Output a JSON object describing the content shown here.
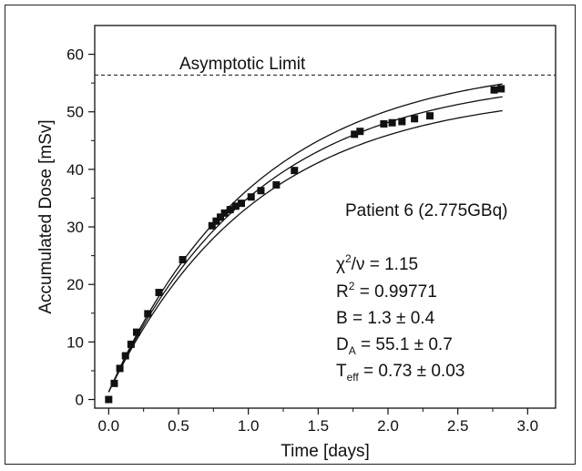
{
  "chart_data": {
    "type": "scatter",
    "title": "",
    "xlabel": "Time [days]",
    "ylabel": "Accumulated Dose [mSv]",
    "xlim": [
      -0.1,
      3.2
    ],
    "ylim": [
      -1.5,
      65
    ],
    "x_ticks": [
      0.0,
      0.5,
      1.0,
      1.5,
      2.0,
      2.5,
      3.0
    ],
    "x_tick_labels": [
      "0.0",
      "0.5",
      "1.0",
      "1.5",
      "2.0",
      "2.5",
      "3.0"
    ],
    "y_ticks": [
      0,
      10,
      20,
      30,
      40,
      50,
      60
    ],
    "y_tick_labels": [
      "0",
      "10",
      "20",
      "30",
      "40",
      "50",
      "60"
    ],
    "grid": false,
    "asymptote": {
      "label": "Asymptotic Limit",
      "value": 56.4
    },
    "fit": {
      "D_A": 55.1,
      "T_eff": 0.73,
      "B": 1.3,
      "band_upper_D_A": 57.5,
      "band_lower_D_A": 52.5
    },
    "series": [
      {
        "x": [
          0.0,
          0.04,
          0.08,
          0.12,
          0.16,
          0.2,
          0.28,
          0.36,
          0.53,
          0.74,
          0.77,
          0.8,
          0.83,
          0.87,
          0.91,
          0.95,
          1.02,
          1.09,
          1.2,
          1.33,
          1.76,
          1.8,
          1.97,
          2.03,
          2.1,
          2.19,
          2.3,
          2.76,
          2.81
        ],
        "y": [
          0.0,
          2.8,
          5.4,
          7.6,
          9.6,
          11.7,
          14.9,
          18.6,
          24.3,
          30.2,
          31.0,
          31.7,
          32.4,
          33.0,
          33.6,
          34.1,
          35.2,
          36.3,
          37.3,
          39.8,
          46.1,
          46.6,
          47.9,
          48.1,
          48.3,
          48.8,
          49.3,
          53.8,
          54.0
        ]
      }
    ],
    "annotations": {
      "patient": "Patient 6 (2.775GBq)",
      "chi_line": "χ²/ν = 1.15",
      "r2_line": "R² = 0.99771",
      "b_line": "B = 1.3 ± 0.4",
      "da_line": "D_A = 55.1 ± 0.7",
      "teff_line": "T_eff = 0.73 ± 0.03",
      "chi_sym": "χ",
      "chi_sup": "2",
      "chi_rest": "/ν = 1.15",
      "r2_base": "R",
      "r2_sup": "2",
      "r2_rest": " = 0.99771",
      "b_text": "B = 1.3 ± 0.4",
      "da_base": "D",
      "da_sub": "A",
      "da_rest": " = 55.1 ± 0.7",
      "teff_base": "T",
      "teff_sub": "eff",
      "teff_rest": " = 0.73 ± 0.03"
    }
  }
}
